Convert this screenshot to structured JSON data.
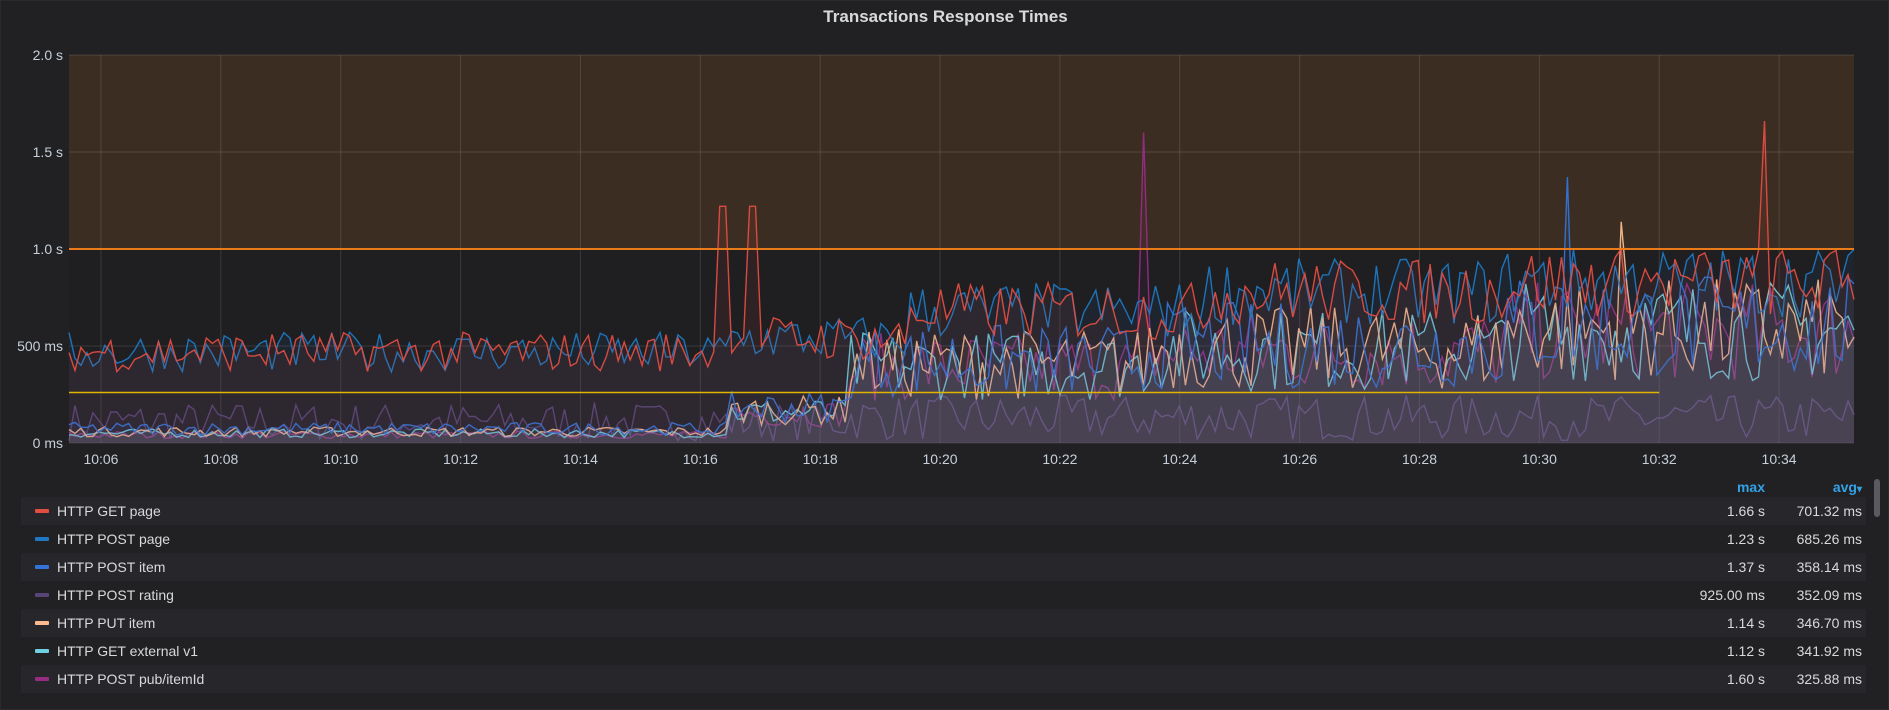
{
  "panel": {
    "title": "Transactions Response Times"
  },
  "legend": {
    "max_header": "max",
    "avg_header": "avg",
    "sort_indicator": "▾"
  },
  "chart_data": {
    "type": "line",
    "title": "Transactions Response Times",
    "y_unit": "ms",
    "ylim": [
      0,
      2000
    ],
    "y_ticks": [
      {
        "value": 0,
        "label": "0 ms"
      },
      {
        "value": 500,
        "label": "500 ms"
      },
      {
        "value": 1000,
        "label": "1.0 s"
      },
      {
        "value": 1500,
        "label": "1.5 s"
      },
      {
        "value": 2000,
        "label": "2.0 s"
      }
    ],
    "x_range": [
      "10:05:28",
      "10:35:15"
    ],
    "x_ticks": [
      "10:06",
      "10:08",
      "10:10",
      "10:12",
      "10:14",
      "10:16",
      "10:18",
      "10:20",
      "10:22",
      "10:24",
      "10:26",
      "10:28",
      "10:30",
      "10:32",
      "10:34"
    ],
    "grid": true,
    "threshold": {
      "value": 1000,
      "color": "#eb7b18",
      "fill": "#3c2d22",
      "region": "above"
    },
    "reference_line": {
      "value": 260,
      "color": "#e0b400",
      "from": "10:05:28",
      "to": "10:32:00"
    },
    "series": [
      {
        "name": "HTTP GET page",
        "color": "#e24d42",
        "max": "1.66 s",
        "avg": "701.32 ms"
      },
      {
        "name": "HTTP POST page",
        "color": "#1f78c1",
        "max": "1.23 s",
        "avg": "685.26 ms"
      },
      {
        "name": "HTTP POST item",
        "color": "#3274d9",
        "max": "1.37 s",
        "avg": "358.14 ms"
      },
      {
        "name": "HTTP POST rating",
        "color": "#584477",
        "max": "925.00 ms",
        "avg": "352.09 ms"
      },
      {
        "name": "HTTP PUT item",
        "color": "#f9ba8f",
        "max": "1.14 s",
        "avg": "346.70 ms"
      },
      {
        "name": "HTTP GET external v1",
        "color": "#6ed0e0",
        "max": "1.12 s",
        "avg": "341.92 ms"
      },
      {
        "name": "HTTP POST pub/itemId",
        "color": "#962d82",
        "max": "1.60 s",
        "avg": "325.88 ms"
      }
    ]
  }
}
